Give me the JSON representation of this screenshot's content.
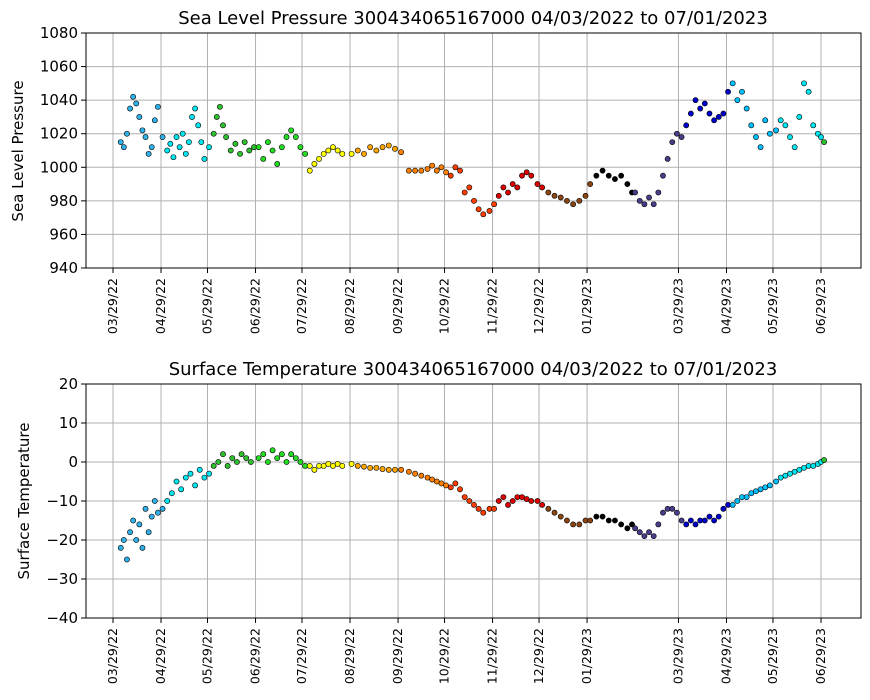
{
  "chart_data": [
    {
      "type": "scatter",
      "title": "Sea Level Pressure 300434065167000  04/03/2022 to 07/01/2023",
      "xlabel": "",
      "ylabel": "Sea Level Pressure",
      "ylim": [
        940,
        1080
      ],
      "yticks": [
        "940",
        "960",
        "980",
        "1000",
        "1020",
        "1040",
        "1060",
        "1080"
      ],
      "xticks": [
        "03/29/22",
        "04/29/22",
        "05/29/22",
        "06/29/22",
        "07/29/22",
        "08/29/22",
        "09/29/22",
        "10/29/22",
        "11/29/22",
        "12/29/22",
        "01/29/23",
        "03/29/23",
        "04/29/23",
        "05/29/23",
        "06/29/23"
      ],
      "grid": true,
      "colors_by_month": [
        "#2fb0e8",
        "#00e5ee",
        "#2ec02e",
        "#22dd22",
        "#ffff00",
        "#ffa500",
        "#ff7f00",
        "#ff3c00",
        "#dd0000",
        "#8b4513",
        "#000000",
        "#483d8b",
        "#0000cd",
        "#00bfff",
        "#00e5ee",
        "#2ec02e"
      ],
      "points": [
        [
          "2022-04-03",
          1015
        ],
        [
          "2022-04-05",
          1012
        ],
        [
          "2022-04-07",
          1020
        ],
        [
          "2022-04-09",
          1035
        ],
        [
          "2022-04-11",
          1042
        ],
        [
          "2022-04-13",
          1038
        ],
        [
          "2022-04-15",
          1030
        ],
        [
          "2022-04-17",
          1022
        ],
        [
          "2022-04-19",
          1018
        ],
        [
          "2022-04-21",
          1008
        ],
        [
          "2022-04-23",
          1012
        ],
        [
          "2022-04-25",
          1028
        ],
        [
          "2022-04-27",
          1036
        ],
        [
          "2022-04-30",
          1018
        ],
        [
          "2022-05-03",
          1010
        ],
        [
          "2022-05-05",
          1014
        ],
        [
          "2022-05-07",
          1006
        ],
        [
          "2022-05-09",
          1018
        ],
        [
          "2022-05-11",
          1012
        ],
        [
          "2022-05-13",
          1020
        ],
        [
          "2022-05-15",
          1008
        ],
        [
          "2022-05-17",
          1015
        ],
        [
          "2022-05-19",
          1030
        ],
        [
          "2022-05-21",
          1035
        ],
        [
          "2022-05-23",
          1025
        ],
        [
          "2022-05-25",
          1015
        ],
        [
          "2022-05-27",
          1005
        ],
        [
          "2022-05-30",
          1012
        ],
        [
          "2022-06-02",
          1020
        ],
        [
          "2022-06-04",
          1030
        ],
        [
          "2022-06-06",
          1036
        ],
        [
          "2022-06-08",
          1025
        ],
        [
          "2022-06-10",
          1018
        ],
        [
          "2022-06-13",
          1010
        ],
        [
          "2022-06-16",
          1014
        ],
        [
          "2022-06-19",
          1008
        ],
        [
          "2022-06-22",
          1015
        ],
        [
          "2022-06-25",
          1010
        ],
        [
          "2022-06-28",
          1012
        ],
        [
          "2022-07-01",
          1012
        ],
        [
          "2022-07-04",
          1005
        ],
        [
          "2022-07-07",
          1015
        ],
        [
          "2022-07-10",
          1010
        ],
        [
          "2022-07-13",
          1002
        ],
        [
          "2022-07-16",
          1012
        ],
        [
          "2022-07-19",
          1018
        ],
        [
          "2022-07-22",
          1022
        ],
        [
          "2022-07-25",
          1018
        ],
        [
          "2022-07-28",
          1012
        ],
        [
          "2022-07-31",
          1008
        ],
        [
          "2022-08-03",
          998
        ],
        [
          "2022-08-06",
          1002
        ],
        [
          "2022-08-09",
          1005
        ],
        [
          "2022-08-12",
          1008
        ],
        [
          "2022-08-15",
          1010
        ],
        [
          "2022-08-18",
          1012
        ],
        [
          "2022-08-21",
          1010
        ],
        [
          "2022-08-24",
          1008
        ],
        [
          "2022-08-30",
          1008
        ],
        [
          "2022-09-03",
          1010
        ],
        [
          "2022-09-07",
          1008
        ],
        [
          "2022-09-11",
          1012
        ],
        [
          "2022-09-15",
          1010
        ],
        [
          "2022-09-19",
          1012
        ],
        [
          "2022-09-23",
          1013
        ],
        [
          "2022-09-27",
          1011
        ],
        [
          "2022-10-01",
          1009
        ],
        [
          "2022-10-06",
          998
        ],
        [
          "2022-10-10",
          998
        ],
        [
          "2022-10-14",
          998
        ],
        [
          "2022-10-18",
          999
        ],
        [
          "2022-10-21",
          1001
        ],
        [
          "2022-10-24",
          998
        ],
        [
          "2022-10-27",
          1000
        ],
        [
          "2022-10-30",
          997
        ],
        [
          "2022-11-02",
          995
        ],
        [
          "2022-11-05",
          1000
        ],
        [
          "2022-11-08",
          998
        ],
        [
          "2022-11-11",
          985
        ],
        [
          "2022-11-14",
          988
        ],
        [
          "2022-11-17",
          980
        ],
        [
          "2022-11-20",
          975
        ],
        [
          "2022-11-23",
          972
        ],
        [
          "2022-11-27",
          974
        ],
        [
          "2022-11-30",
          978
        ],
        [
          "2022-12-03",
          983
        ],
        [
          "2022-12-06",
          988
        ],
        [
          "2022-12-09",
          985
        ],
        [
          "2022-12-12",
          990
        ],
        [
          "2022-12-15",
          988
        ],
        [
          "2022-12-18",
          995
        ],
        [
          "2022-12-21",
          997
        ],
        [
          "2022-12-24",
          995
        ],
        [
          "2022-12-28",
          990
        ],
        [
          "2022-12-31",
          988
        ],
        [
          "2023-01-04",
          985
        ],
        [
          "2023-01-08",
          983
        ],
        [
          "2023-01-12",
          982
        ],
        [
          "2023-01-16",
          980
        ],
        [
          "2023-01-20",
          978
        ],
        [
          "2023-01-24",
          980
        ],
        [
          "2023-01-28",
          983
        ],
        [
          "2023-01-31",
          990
        ],
        [
          "2023-02-04",
          995
        ],
        [
          "2023-02-08",
          998
        ],
        [
          "2023-02-12",
          995
        ],
        [
          "2023-02-16",
          993
        ],
        [
          "2023-02-20",
          995
        ],
        [
          "2023-02-24",
          990
        ],
        [
          "2023-02-27",
          985
        ],
        [
          "2023-03-01",
          985
        ],
        [
          "2023-03-04",
          980
        ],
        [
          "2023-03-07",
          978
        ],
        [
          "2023-03-10",
          982
        ],
        [
          "2023-03-13",
          978
        ],
        [
          "2023-03-16",
          985
        ],
        [
          "2023-03-19",
          995
        ],
        [
          "2023-03-22",
          1005
        ],
        [
          "2023-03-25",
          1015
        ],
        [
          "2023-03-28",
          1020
        ],
        [
          "2023-03-31",
          1018
        ],
        [
          "2023-04-03",
          1025
        ],
        [
          "2023-04-06",
          1032
        ],
        [
          "2023-04-09",
          1040
        ],
        [
          "2023-04-12",
          1035
        ],
        [
          "2023-04-15",
          1038
        ],
        [
          "2023-04-18",
          1032
        ],
        [
          "2023-04-21",
          1028
        ],
        [
          "2023-04-24",
          1030
        ],
        [
          "2023-04-27",
          1032
        ],
        [
          "2023-04-30",
          1045
        ],
        [
          "2023-05-03",
          1050
        ],
        [
          "2023-05-06",
          1040
        ],
        [
          "2023-05-09",
          1045
        ],
        [
          "2023-05-12",
          1035
        ],
        [
          "2023-05-15",
          1025
        ],
        [
          "2023-05-18",
          1018
        ],
        [
          "2023-05-21",
          1012
        ],
        [
          "2023-05-24",
          1028
        ],
        [
          "2023-05-27",
          1020
        ],
        [
          "2023-05-31",
          1022
        ],
        [
          "2023-06-03",
          1028
        ],
        [
          "2023-06-06",
          1025
        ],
        [
          "2023-06-09",
          1018
        ],
        [
          "2023-06-12",
          1012
        ],
        [
          "2023-06-15",
          1030
        ],
        [
          "2023-06-18",
          1050
        ],
        [
          "2023-06-21",
          1045
        ],
        [
          "2023-06-24",
          1025
        ],
        [
          "2023-06-27",
          1020
        ],
        [
          "2023-06-29",
          1018
        ],
        [
          "2023-07-01",
          1015
        ]
      ]
    },
    {
      "type": "scatter",
      "title": "Surface Temperature 300434065167000  04/03/2022 to 07/01/2023",
      "xlabel": "",
      "ylabel": "Surface Temperature",
      "ylim": [
        -40,
        20
      ],
      "yticks": [
        "−40",
        "−30",
        "−20",
        "−10",
        "0",
        "10",
        "20"
      ],
      "xticks": [
        "03/29/22",
        "04/29/22",
        "05/29/22",
        "06/29/22",
        "07/29/22",
        "08/29/22",
        "09/29/22",
        "10/29/22",
        "11/29/22",
        "12/29/22",
        "01/29/23",
        "03/29/23",
        "04/29/23",
        "05/29/23",
        "06/29/23"
      ],
      "grid": true,
      "colors_by_month": [
        "#2fb0e8",
        "#00e5ee",
        "#2ec02e",
        "#22dd22",
        "#ffff00",
        "#ffa500",
        "#ff7f00",
        "#ff3c00",
        "#dd0000",
        "#8b4513",
        "#000000",
        "#483d8b",
        "#0000cd",
        "#00bfff",
        "#00e5ee",
        "#2ec02e"
      ],
      "points": [
        [
          "2022-04-03",
          -22
        ],
        [
          "2022-04-05",
          -20
        ],
        [
          "2022-04-07",
          -25
        ],
        [
          "2022-04-09",
          -18
        ],
        [
          "2022-04-11",
          -15
        ],
        [
          "2022-04-13",
          -20
        ],
        [
          "2022-04-15",
          -16
        ],
        [
          "2022-04-17",
          -22
        ],
        [
          "2022-04-19",
          -12
        ],
        [
          "2022-04-21",
          -18
        ],
        [
          "2022-04-23",
          -14
        ],
        [
          "2022-04-25",
          -10
        ],
        [
          "2022-04-27",
          -13
        ],
        [
          "2022-04-30",
          -12
        ],
        [
          "2022-05-03",
          -10
        ],
        [
          "2022-05-06",
          -8
        ],
        [
          "2022-05-09",
          -5
        ],
        [
          "2022-05-12",
          -7
        ],
        [
          "2022-05-15",
          -4
        ],
        [
          "2022-05-18",
          -3
        ],
        [
          "2022-05-21",
          -6
        ],
        [
          "2022-05-24",
          -2
        ],
        [
          "2022-05-27",
          -4
        ],
        [
          "2022-05-30",
          -3
        ],
        [
          "2022-06-02",
          -1
        ],
        [
          "2022-06-05",
          0
        ],
        [
          "2022-06-08",
          2
        ],
        [
          "2022-06-11",
          -1
        ],
        [
          "2022-06-14",
          1
        ],
        [
          "2022-06-17",
          0
        ],
        [
          "2022-06-20",
          2
        ],
        [
          "2022-06-23",
          1
        ],
        [
          "2022-06-26",
          0
        ],
        [
          "2022-07-01",
          1
        ],
        [
          "2022-07-04",
          2
        ],
        [
          "2022-07-07",
          0
        ],
        [
          "2022-07-10",
          3
        ],
        [
          "2022-07-13",
          1
        ],
        [
          "2022-07-16",
          2
        ],
        [
          "2022-07-19",
          0
        ],
        [
          "2022-07-22",
          2
        ],
        [
          "2022-07-25",
          1
        ],
        [
          "2022-07-28",
          0
        ],
        [
          "2022-07-31",
          -1
        ],
        [
          "2022-08-03",
          -1
        ],
        [
          "2022-08-06",
          -2
        ],
        [
          "2022-08-09",
          -1
        ],
        [
          "2022-08-12",
          -1
        ],
        [
          "2022-08-15",
          -0.5
        ],
        [
          "2022-08-18",
          -1
        ],
        [
          "2022-08-21",
          -0.5
        ],
        [
          "2022-08-24",
          -1
        ],
        [
          "2022-08-30",
          -0.5
        ],
        [
          "2022-09-03",
          -1
        ],
        [
          "2022-09-07",
          -1.2
        ],
        [
          "2022-09-11",
          -1.5
        ],
        [
          "2022-09-15",
          -1.5
        ],
        [
          "2022-09-19",
          -1.8
        ],
        [
          "2022-09-23",
          -2
        ],
        [
          "2022-09-27",
          -2
        ],
        [
          "2022-10-01",
          -2
        ],
        [
          "2022-10-06",
          -2.5
        ],
        [
          "2022-10-10",
          -3
        ],
        [
          "2022-10-14",
          -3.5
        ],
        [
          "2022-10-18",
          -4
        ],
        [
          "2022-10-21",
          -4.5
        ],
        [
          "2022-10-24",
          -5
        ],
        [
          "2022-10-27",
          -5.5
        ],
        [
          "2022-10-30",
          -6
        ],
        [
          "2022-11-02",
          -6.5
        ],
        [
          "2022-11-05",
          -5.5
        ],
        [
          "2022-11-08",
          -7
        ],
        [
          "2022-11-11",
          -9
        ],
        [
          "2022-11-14",
          -10
        ],
        [
          "2022-11-17",
          -11
        ],
        [
          "2022-11-20",
          -12
        ],
        [
          "2022-11-23",
          -13
        ],
        [
          "2022-11-27",
          -12
        ],
        [
          "2022-11-30",
          -12
        ],
        [
          "2022-12-03",
          -10
        ],
        [
          "2022-12-06",
          -9
        ],
        [
          "2022-12-09",
          -11
        ],
        [
          "2022-12-12",
          -10
        ],
        [
          "2022-12-15",
          -9
        ],
        [
          "2022-12-18",
          -9
        ],
        [
          "2022-12-21",
          -9.5
        ],
        [
          "2022-12-24",
          -10
        ],
        [
          "2022-12-28",
          -10
        ],
        [
          "2022-12-31",
          -11
        ],
        [
          "2023-01-04",
          -12
        ],
        [
          "2023-01-08",
          -13
        ],
        [
          "2023-01-12",
          -14
        ],
        [
          "2023-01-16",
          -15
        ],
        [
          "2023-01-20",
          -16
        ],
        [
          "2023-01-24",
          -16
        ],
        [
          "2023-01-28",
          -15
        ],
        [
          "2023-01-31",
          -15
        ],
        [
          "2023-02-04",
          -14
        ],
        [
          "2023-02-08",
          -14
        ],
        [
          "2023-02-12",
          -15
        ],
        [
          "2023-02-16",
          -15
        ],
        [
          "2023-02-20",
          -16
        ],
        [
          "2023-02-24",
          -17
        ],
        [
          "2023-02-27",
          -16
        ],
        [
          "2023-03-01",
          -17
        ],
        [
          "2023-03-04",
          -18
        ],
        [
          "2023-03-07",
          -19
        ],
        [
          "2023-03-10",
          -18
        ],
        [
          "2023-03-13",
          -19
        ],
        [
          "2023-03-16",
          -16
        ],
        [
          "2023-03-19",
          -13
        ],
        [
          "2023-03-22",
          -12
        ],
        [
          "2023-03-25",
          -12
        ],
        [
          "2023-03-28",
          -13
        ],
        [
          "2023-03-31",
          -15
        ],
        [
          "2023-04-03",
          -16
        ],
        [
          "2023-04-06",
          -15
        ],
        [
          "2023-04-09",
          -16
        ],
        [
          "2023-04-12",
          -15
        ],
        [
          "2023-04-15",
          -15
        ],
        [
          "2023-04-18",
          -14
        ],
        [
          "2023-04-21",
          -15
        ],
        [
          "2023-04-24",
          -14
        ],
        [
          "2023-04-27",
          -12
        ],
        [
          "2023-04-30",
          -11
        ],
        [
          "2023-05-03",
          -11
        ],
        [
          "2023-05-06",
          -10
        ],
        [
          "2023-05-09",
          -9
        ],
        [
          "2023-05-12",
          -9
        ],
        [
          "2023-05-15",
          -8
        ],
        [
          "2023-05-18",
          -7.5
        ],
        [
          "2023-05-21",
          -7
        ],
        [
          "2023-05-24",
          -6.5
        ],
        [
          "2023-05-27",
          -6
        ],
        [
          "2023-05-31",
          -5
        ],
        [
          "2023-06-03",
          -4
        ],
        [
          "2023-06-06",
          -3.5
        ],
        [
          "2023-06-09",
          -3
        ],
        [
          "2023-06-12",
          -2.5
        ],
        [
          "2023-06-15",
          -2
        ],
        [
          "2023-06-18",
          -1.5
        ],
        [
          "2023-06-21",
          -1
        ],
        [
          "2023-06-24",
          -1
        ],
        [
          "2023-06-27",
          -0.5
        ],
        [
          "2023-06-29",
          0
        ],
        [
          "2023-07-01",
          0.5
        ]
      ]
    }
  ]
}
